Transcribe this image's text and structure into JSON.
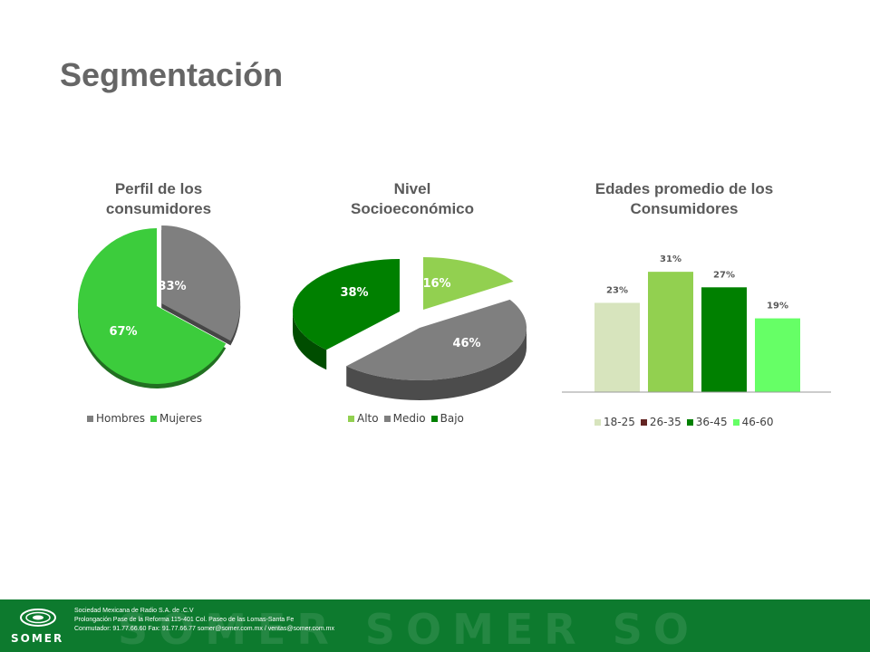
{
  "title": "Segmentación",
  "colors": {
    "gray": "#7f7f7f",
    "green": "#3ccc3c",
    "light_green": "#92d050",
    "dark_green": "#008000",
    "pale_green": "#d7e4bd",
    "dark_red": "#632523",
    "bright_green": "#66ff66",
    "footer": "#0d7a2e"
  },
  "chart_data": [
    {
      "type": "pie",
      "title": "Perfil de los consumidores",
      "title_lines": [
        "Perfil de los",
        "consumidores"
      ],
      "categories": [
        "Hombres",
        "Mujeres"
      ],
      "values": [
        33,
        67
      ],
      "labels": [
        "33%",
        "67%"
      ],
      "legend_placement": "bottom"
    },
    {
      "type": "pie",
      "title": "Nivel Socioeconómico",
      "title_lines": [
        "Nivel",
        "Socioeconómico"
      ],
      "categories": [
        "Alto",
        "Medio",
        "Bajo"
      ],
      "values": [
        16,
        46,
        38
      ],
      "labels": [
        "16%",
        "46%",
        "38%"
      ],
      "legend_placement": "bottom"
    },
    {
      "type": "bar",
      "title": "Edades promedio de los Consumidores",
      "title_lines": [
        "Edades promedio de los",
        "Consumidores"
      ],
      "categories": [
        "18-25",
        "26-35",
        "36-45",
        "46-60"
      ],
      "legend": [
        "18-25",
        "26-35",
        "36-45",
        "46-60"
      ],
      "values": [
        23,
        31,
        27,
        19
      ],
      "labels": [
        "23%",
        "31%",
        "27%",
        "19%"
      ],
      "ylim": [
        0,
        35
      ],
      "grid": false,
      "legend_placement": "bottom"
    }
  ],
  "footer": {
    "logo": "SOMER",
    "watermark": "SOMER SOMER SO",
    "line1": "Sociedad Mexicana de Radio S.A. de .C.V",
    "line2": "Prolongación Pase de la Reforma 115-401  Col. Paseo de las Lomas-Santa Fe",
    "line3": "Conmutador:  91.77.66.60   Fax: 91.77.66.77    somer@somer.com.mx / ventas@somer.com.mx"
  }
}
